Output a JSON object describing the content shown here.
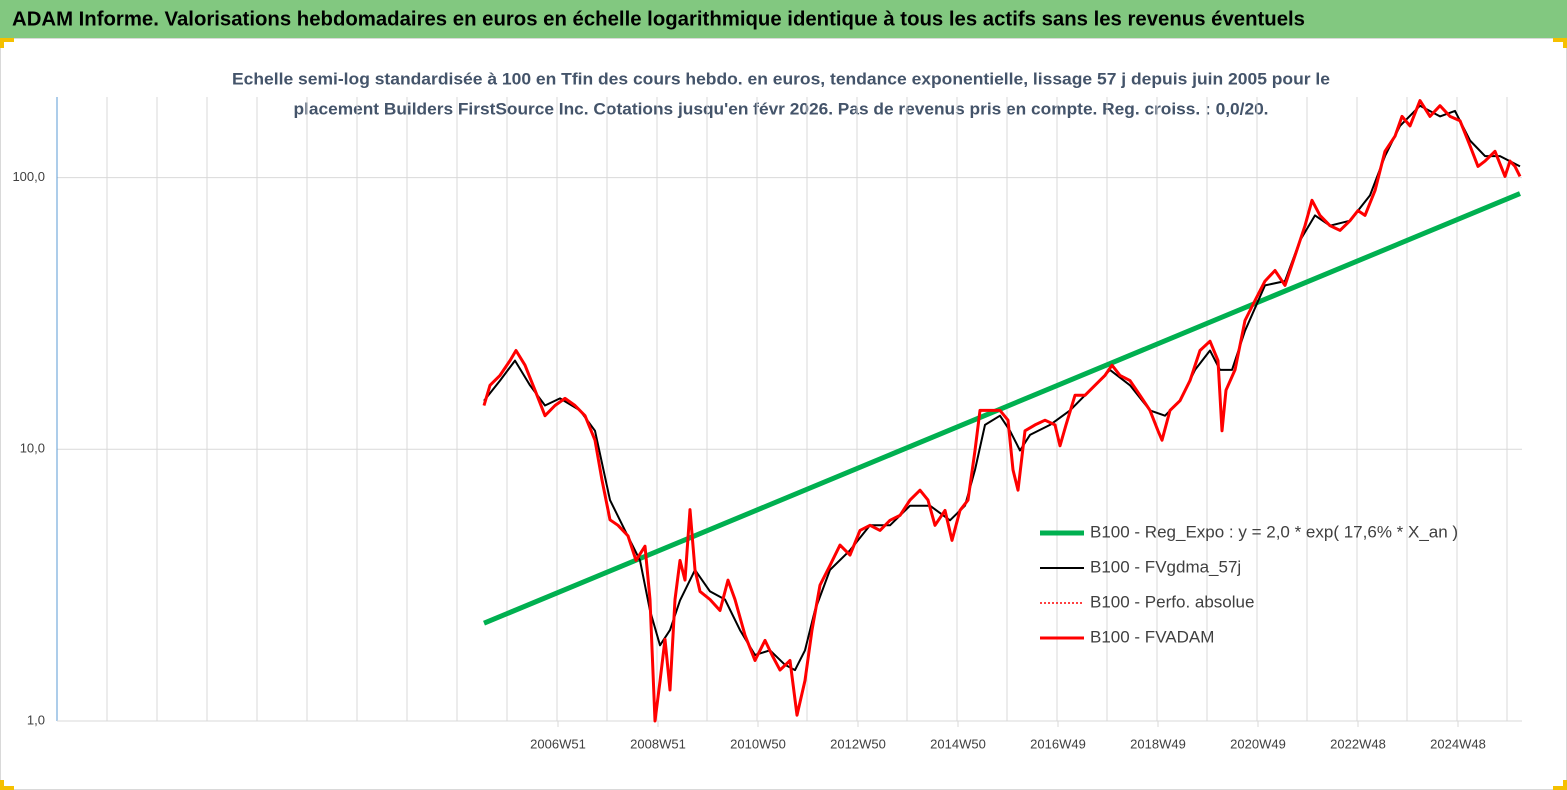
{
  "chart_data": {
    "type": "line",
    "title": "ADAM Informe. Valorisations hebdomadaires en euros en échelle logarithmique identique à tous les actifs sans les revenus éventuels",
    "subtitle": [
      "Echelle semi-log standardisée à 100 en Tfin des cours hebdo. en euros, tendance exponentielle, lissage 57 j depuis juin 2005 pour le",
      "placement Builders FirstSource Inc. Cotations jusqu'en févr 2026. Pas de revenus pris en compte. Reg. croiss. : 0,0/20."
    ],
    "log_y": true,
    "grid": true,
    "xlim": [
      1996.94,
      2026.24
    ],
    "ylim": [
      1,
      198
    ],
    "yticks": [
      {
        "value": 1,
        "label": "1,0"
      },
      {
        "value": 10,
        "label": "10,0"
      },
      {
        "value": 100,
        "label": "100,0"
      }
    ],
    "xticks": [
      {
        "value": 2006.96,
        "label": "2006W51"
      },
      {
        "value": 2008.96,
        "label": "2008W51"
      },
      {
        "value": 2010.96,
        "label": "2010W50"
      },
      {
        "value": 2012.96,
        "label": "2012W50"
      },
      {
        "value": 2014.96,
        "label": "2014W50"
      },
      {
        "value": 2016.96,
        "label": "2016W49"
      },
      {
        "value": 2018.96,
        "label": "2018W49"
      },
      {
        "value": 2020.96,
        "label": "2020W49"
      },
      {
        "value": 2022.96,
        "label": "2022W48"
      },
      {
        "value": 2024.96,
        "label": "2024W48"
      }
    ],
    "xgrid": [
      1996.94,
      1997.94,
      1998.94,
      1999.94,
      2000.94,
      2001.94,
      2002.94,
      2003.94,
      2004.94,
      2005.94,
      2006.94,
      2007.94,
      2008.94,
      2009.94,
      2010.94,
      2011.94,
      2012.94,
      2013.94,
      2014.94,
      2015.94,
      2016.94,
      2017.94,
      2018.94,
      2019.94,
      2020.94,
      2021.94,
      2022.94,
      2023.94,
      2024.94,
      2025.94
    ],
    "x": [
      2005.48,
      2005.6,
      2005.8,
      2006.0,
      2006.12,
      2006.3,
      2006.5,
      2006.7,
      2006.9,
      2007.1,
      2007.3,
      2007.5,
      2007.7,
      2007.84,
      2008.0,
      2008.16,
      2008.36,
      2008.52,
      2008.7,
      2008.8,
      2008.9,
      2009.0,
      2009.1,
      2009.2,
      2009.3,
      2009.4,
      2009.5,
      2009.6,
      2009.7,
      2009.8,
      2010.0,
      2010.2,
      2010.36,
      2010.5,
      2010.7,
      2010.9,
      2011.1,
      2011.24,
      2011.4,
      2011.6,
      2011.74,
      2011.9,
      2012.04,
      2012.2,
      2012.4,
      2012.6,
      2012.8,
      2013.0,
      2013.2,
      2013.4,
      2013.6,
      2013.8,
      2014.0,
      2014.2,
      2014.36,
      2014.5,
      2014.7,
      2014.84,
      2015.0,
      2015.16,
      2015.3,
      2015.4,
      2015.6,
      2015.8,
      2015.96,
      2016.06,
      2016.16,
      2016.3,
      2016.5,
      2016.7,
      2016.9,
      2017.0,
      2017.12,
      2017.3,
      2017.5,
      2017.7,
      2017.9,
      2018.04,
      2018.2,
      2018.4,
      2018.6,
      2018.8,
      2018.96,
      2019.04,
      2019.2,
      2019.4,
      2019.6,
      2019.8,
      2020.0,
      2020.16,
      2020.24,
      2020.32,
      2020.5,
      2020.7,
      2020.9,
      2021.1,
      2021.3,
      2021.5,
      2021.7,
      2021.9,
      2022.04,
      2022.2,
      2022.4,
      2022.6,
      2022.8,
      2022.96,
      2023.1,
      2023.3,
      2023.5,
      2023.7,
      2023.84,
      2024.0,
      2024.2,
      2024.4,
      2024.6,
      2024.8,
      2025.0,
      2025.2,
      2025.36,
      2025.5,
      2025.7,
      2025.9,
      2026.0,
      2026.1,
      2026.2
    ],
    "series": [
      {
        "name": "B100 - Reg_Expo : y = 2,0 * exp( 17,6% *  X_an )",
        "color": "#00b050",
        "width": 5,
        "dash": "none",
        "x": [
          2005.48,
          2026.2
        ],
        "values": [
          2.29,
          87.3
        ]
      },
      {
        "name": "B100 - FVgdma_57j",
        "color": "#000000",
        "width": 2,
        "dash": "none",
        "x": [
          2005.48,
          2005.8,
          2006.1,
          2006.4,
          2006.7,
          2007.0,
          2007.4,
          2007.7,
          2008.0,
          2008.3,
          2008.6,
          2008.8,
          2009.0,
          2009.2,
          2009.4,
          2009.7,
          2010.0,
          2010.3,
          2010.6,
          2010.9,
          2011.2,
          2011.5,
          2011.7,
          2011.9,
          2012.1,
          2012.4,
          2012.8,
          2013.2,
          2013.6,
          2014.0,
          2014.4,
          2014.8,
          2015.1,
          2015.3,
          2015.5,
          2015.8,
          2016.0,
          2016.2,
          2016.4,
          2016.8,
          2017.2,
          2017.6,
          2018.0,
          2018.4,
          2018.8,
          2019.1,
          2019.4,
          2019.7,
          2020.0,
          2020.2,
          2020.44,
          2020.7,
          2021.1,
          2021.5,
          2021.8,
          2022.1,
          2022.4,
          2022.8,
          2023.2,
          2023.5,
          2023.8,
          2024.2,
          2024.6,
          2024.9,
          2025.2,
          2025.5,
          2025.8,
          2026.2
        ],
        "values": [
          15.1,
          17.9,
          21.2,
          17.2,
          14.5,
          15.4,
          13.9,
          11.7,
          6.5,
          5.03,
          3.9,
          2.55,
          1.9,
          2.16,
          2.78,
          3.6,
          3.0,
          2.8,
          2.16,
          1.75,
          1.82,
          1.61,
          1.54,
          1.82,
          2.56,
          3.6,
          4.25,
          5.25,
          5.25,
          6.2,
          6.2,
          5.48,
          6.2,
          8.4,
          12.3,
          13.3,
          11.7,
          9.9,
          11.3,
          12.3,
          13.9,
          16.5,
          19.6,
          17.2,
          13.9,
          13.3,
          15.1,
          19.6,
          23.1,
          19.6,
          19.6,
          27.3,
          40.1,
          41.6,
          58.7,
          72.6,
          66.5,
          69.4,
          86,
          120,
          155,
          184,
          168,
          176,
          137,
          120,
          120,
          110
        ]
      },
      {
        "name": "B100 - Perfo. absolue",
        "color": "#ff0000",
        "width": 1.5,
        "dash": "2 2",
        "values": [
          14.5,
          17.2,
          18.7,
          21.2,
          23.1,
          20.4,
          16.5,
          13.3,
          14.5,
          15.4,
          14.5,
          13.3,
          10.8,
          7.7,
          5.5,
          5.25,
          4.8,
          3.9,
          4.4,
          2.8,
          1.0,
          1.4,
          2.0,
          1.3,
          2.8,
          3.9,
          3.3,
          6.0,
          3.6,
          3.0,
          2.8,
          2.55,
          3.3,
          2.8,
          2.07,
          1.67,
          1.98,
          1.75,
          1.54,
          1.67,
          1.05,
          1.41,
          2.16,
          3.16,
          3.74,
          4.44,
          4.08,
          5.03,
          5.25,
          5.03,
          5.48,
          5.71,
          6.5,
          7.07,
          6.5,
          5.25,
          5.96,
          4.62,
          5.96,
          6.5,
          9.9,
          13.9,
          13.9,
          13.9,
          12.8,
          8.4,
          7.07,
          11.7,
          12.3,
          12.8,
          12.3,
          10.3,
          12.3,
          15.8,
          15.8,
          17.2,
          18.7,
          20.4,
          18.7,
          17.9,
          15.8,
          13.9,
          11.7,
          10.8,
          13.9,
          15.1,
          17.9,
          23.1,
          25.0,
          21.2,
          11.7,
          16.5,
          19.6,
          29.8,
          35.3,
          41.6,
          45.5,
          40.1,
          51.6,
          66.5,
          82.5,
          72.6,
          66.5,
          63.9,
          69.4,
          75.6,
          72.6,
          89.6,
          125,
          142,
          168,
          155,
          192,
          168,
          184,
          168,
          162,
          131,
          110,
          115,
          125,
          101,
          115,
          110,
          101
        ]
      },
      {
        "name": "B100 - FVADAM",
        "color": "#ff0000",
        "width": 3,
        "dash": "none",
        "values": [
          14.5,
          17.2,
          18.7,
          21.2,
          23.1,
          20.4,
          16.5,
          13.3,
          14.5,
          15.4,
          14.5,
          13.3,
          10.8,
          7.7,
          5.5,
          5.25,
          4.8,
          3.9,
          4.4,
          2.8,
          1.0,
          1.4,
          2.0,
          1.3,
          2.8,
          3.9,
          3.3,
          6.0,
          3.6,
          3.0,
          2.8,
          2.55,
          3.3,
          2.8,
          2.07,
          1.67,
          1.98,
          1.75,
          1.54,
          1.67,
          1.05,
          1.41,
          2.16,
          3.16,
          3.74,
          4.44,
          4.08,
          5.03,
          5.25,
          5.03,
          5.48,
          5.71,
          6.5,
          7.07,
          6.5,
          5.25,
          5.96,
          4.62,
          5.96,
          6.5,
          9.9,
          13.9,
          13.9,
          13.9,
          12.8,
          8.4,
          7.07,
          11.7,
          12.3,
          12.8,
          12.3,
          10.3,
          12.3,
          15.8,
          15.8,
          17.2,
          18.7,
          20.4,
          18.7,
          17.9,
          15.8,
          13.9,
          11.7,
          10.8,
          13.9,
          15.1,
          17.9,
          23.1,
          25.0,
          21.2,
          11.7,
          16.5,
          19.6,
          29.8,
          35.3,
          41.6,
          45.5,
          40.1,
          51.6,
          66.5,
          82.5,
          72.6,
          66.5,
          63.9,
          69.4,
          75.6,
          72.6,
          89.6,
          125,
          142,
          168,
          155,
          192,
          168,
          184,
          168,
          162,
          131,
          110,
          115,
          125,
          101,
          115,
          110,
          101
        ]
      }
    ]
  }
}
